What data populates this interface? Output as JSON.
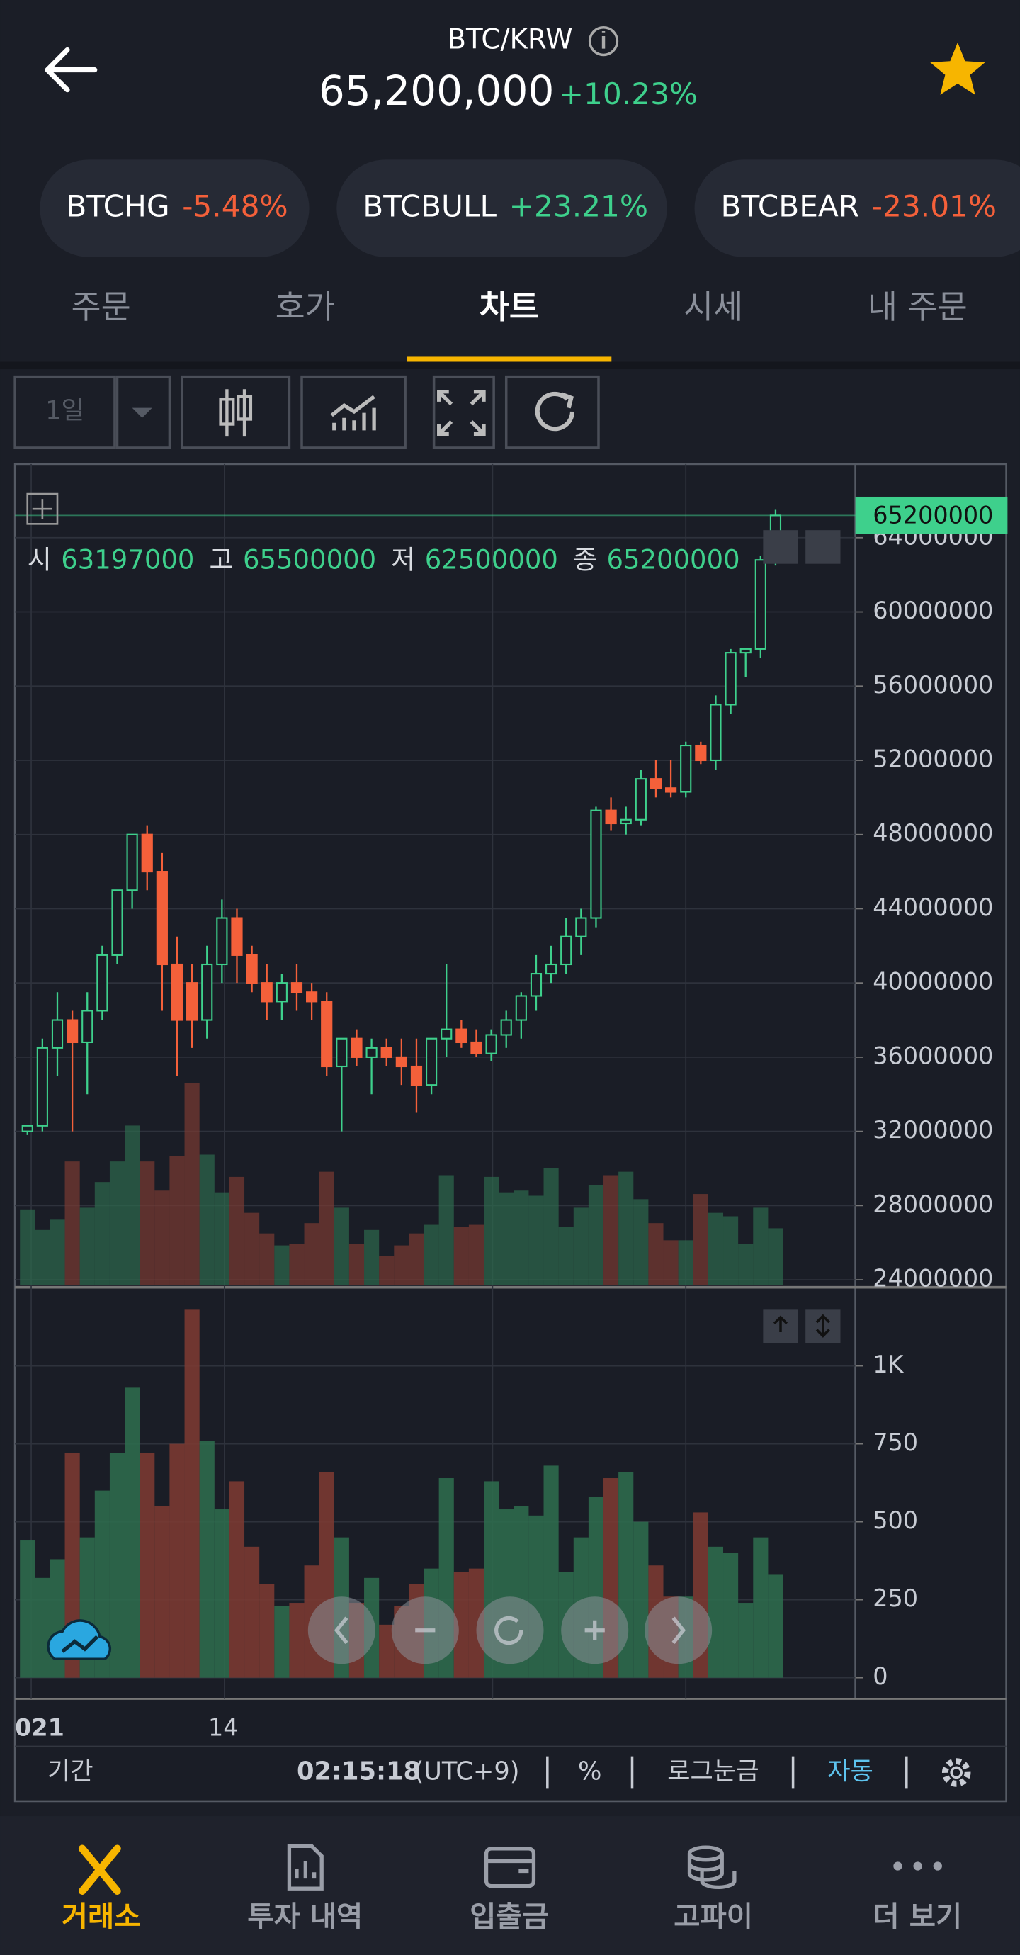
{
  "header": {
    "title": "BTC/KRW",
    "price": "65,200,000",
    "change": "+10.23%"
  },
  "tickers": [
    {
      "name": "BTCHG",
      "change": "-5.48%"
    },
    {
      "name": "BTCBULL",
      "change": "+23.21%"
    },
    {
      "name": "BTCBEAR",
      "change": "-23.01%"
    }
  ],
  "tabs": [
    "주문",
    "호가",
    "차트",
    "시세",
    "내 주문"
  ],
  "active_tab": 2,
  "toolbar": {
    "interval": "1일"
  },
  "chart": {
    "ohlc": [
      {
        "label": "시",
        "value": 63197000
      },
      {
        "label": "고",
        "value": 65500000
      },
      {
        "label": "저",
        "value": 62500000
      },
      {
        "label": "종",
        "value": 65200000
      }
    ],
    "current_price": 65200000,
    "ylim": [
      23730000,
      67970000
    ],
    "yticks": [
      64000000,
      60000000,
      56000000,
      52000000,
      48000000,
      44000000,
      40000000,
      36000000,
      32000000,
      28000000,
      24000000
    ],
    "volume_lim": [
      -60,
      1252
    ],
    "volume_ticks": [
      {
        "value": 1000,
        "label": "1K"
      },
      750,
      500,
      250,
      0
    ],
    "x_labels": [
      "021",
      "14"
    ],
    "candles": [
      [
        32.0,
        32.3,
        31.8,
        32.3
      ],
      [
        32.3,
        37,
        32,
        36.5
      ],
      [
        36.5,
        39.5,
        35,
        38
      ],
      [
        38,
        38.5,
        32,
        36.8
      ],
      [
        36.8,
        39.5,
        34,
        38.5
      ],
      [
        38.5,
        42,
        38,
        41.5
      ],
      [
        41.5,
        45,
        41,
        45
      ],
      [
        45,
        48,
        44,
        48
      ],
      [
        48,
        48.5,
        45,
        46
      ],
      [
        46,
        47,
        38.5,
        41
      ],
      [
        41,
        42.5,
        35,
        38
      ],
      [
        40,
        41,
        36.5,
        38
      ],
      [
        38,
        42,
        37,
        41
      ],
      [
        41,
        44.5,
        40,
        43.5
      ],
      [
        43.5,
        44,
        40,
        41.5
      ],
      [
        41.5,
        42,
        39.5,
        40
      ],
      [
        40,
        41,
        38,
        39
      ],
      [
        39,
        40.5,
        38,
        40
      ],
      [
        40,
        41,
        38.5,
        39.5
      ],
      [
        39.5,
        40,
        38,
        39
      ],
      [
        39,
        39.5,
        35,
        35.5
      ],
      [
        35.5,
        37,
        32,
        37
      ],
      [
        37,
        37.5,
        35.5,
        36
      ],
      [
        36,
        37,
        34,
        36.5
      ],
      [
        36.5,
        37,
        35.5,
        36
      ],
      [
        36,
        37,
        34.5,
        35.5
      ],
      [
        35.5,
        37,
        33,
        34.5
      ],
      [
        34.5,
        37,
        34,
        37
      ],
      [
        37,
        41,
        36,
        37.5
      ],
      [
        37.5,
        38,
        36.5,
        36.8
      ],
      [
        36.8,
        37.5,
        36,
        36.2
      ],
      [
        36.2,
        37.5,
        35.8,
        37.2
      ],
      [
        37.2,
        38.5,
        36.5,
        38
      ],
      [
        38,
        39.5,
        37,
        39.3
      ],
      [
        39.3,
        41.5,
        38.5,
        40.5
      ],
      [
        40.5,
        42,
        40,
        41
      ],
      [
        41,
        43.5,
        40.5,
        42.5
      ],
      [
        42.5,
        44,
        41.5,
        43.5
      ],
      [
        43.5,
        49.5,
        43,
        49.3
      ],
      [
        49.3,
        50,
        48.2,
        48.6
      ],
      [
        48.6,
        49.5,
        48,
        48.8
      ],
      [
        48.8,
        51.5,
        48.5,
        51
      ],
      [
        51,
        52,
        50,
        50.5
      ],
      [
        50.5,
        52,
        50,
        50.3
      ],
      [
        50.3,
        53,
        50,
        52.8
      ],
      [
        52.8,
        53,
        51.8,
        52
      ],
      [
        52,
        55.5,
        51.5,
        55
      ],
      [
        55,
        58,
        54.5,
        57.8
      ],
      [
        57.8,
        58,
        56.5,
        58
      ],
      [
        58,
        63,
        57.5,
        62.8
      ],
      [
        63.197,
        65.5,
        62.5,
        65.2
      ]
    ],
    "candle_unit": 1000000,
    "volumes": [
      440,
      320,
      380,
      720,
      450,
      600,
      720,
      930,
      720,
      550,
      750,
      1180,
      760,
      540,
      630,
      420,
      300,
      230,
      240,
      360,
      660,
      450,
      240,
      320,
      170,
      230,
      300,
      350,
      640,
      340,
      350,
      630,
      540,
      550,
      520,
      680,
      340,
      450,
      580,
      640,
      660,
      500,
      360,
      260,
      260,
      530,
      420,
      400,
      240,
      450,
      330
    ]
  },
  "footer": {
    "period": "기간",
    "time": "02:15:18",
    "timezone": "(UTC+9)",
    "percent": "%",
    "log": "로그눈금",
    "auto": "자동"
  },
  "nav": [
    "거래소",
    "투자 내역",
    "입출금",
    "고파이",
    "더 보기"
  ]
}
